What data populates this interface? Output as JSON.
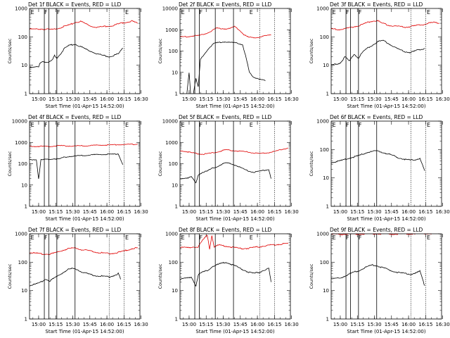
{
  "chart_data": [
    {
      "type": "line",
      "title": "Det 1f BLACK = Events, RED = LLD",
      "xlabel": "Start Time (01-Apr-15 14:52:00)",
      "ylabel": "Counts/sec",
      "yscale": "log",
      "ylim": [
        1,
        1000
      ],
      "xticks": [
        "15:00",
        "15:15",
        "15:30",
        "15:45",
        "16:00",
        "16:15",
        "16:30"
      ],
      "yticks": [
        "1",
        "10",
        "100",
        "1000"
      ],
      "markers": [
        "E",
        "F",
        "F",
        "E"
      ],
      "series": [
        {
          "name": "Events",
          "color": "#000000",
          "x": [
            0,
            8,
            9,
            12,
            16,
            20,
            22,
            24,
            27,
            31,
            35,
            40,
            45,
            52,
            60,
            65,
            70,
            75,
            78,
            82
          ],
          "y": [
            8,
            9,
            12,
            14,
            12,
            15,
            22,
            18,
            25,
            40,
            50,
            55,
            45,
            33,
            25,
            22,
            20,
            23,
            25,
            40
          ]
        },
        {
          "name": "LLD",
          "color": "#e00000",
          "x": [
            0,
            10,
            20,
            25,
            30,
            35,
            40,
            45,
            50,
            55,
            60,
            65,
            70,
            75,
            80,
            85,
            90,
            95
          ],
          "y": [
            185,
            190,
            180,
            200,
            230,
            260,
            320,
            350,
            280,
            230,
            220,
            230,
            240,
            260,
            300,
            330,
            360,
            300
          ]
        }
      ]
    },
    {
      "type": "line",
      "title": "Det 2f BLACK = Events, RED = LLD",
      "xlabel": "Start Time (01-Apr-15 14:52:00)",
      "ylabel": "Counts/sec",
      "yscale": "log",
      "ylim": [
        1,
        10000
      ],
      "xticks": [
        "15:00",
        "15:15",
        "15:30",
        "15:45",
        "16:00",
        "16:15",
        "16:30"
      ],
      "yticks": [
        "1",
        "10",
        "100",
        "1000",
        "10000"
      ],
      "markers": [
        "E",
        "F",
        "E"
      ],
      "series": [
        {
          "name": "Events",
          "color": "#000000",
          "x": [
            0,
            6,
            8,
            10,
            14,
            16,
            18,
            22,
            26,
            30,
            35,
            40,
            45,
            50,
            55,
            58,
            61,
            64,
            70,
            75
          ],
          "y": [
            0.3,
            1,
            10,
            0.3,
            5,
            2,
            40,
            80,
            150,
            230,
            260,
            270,
            250,
            240,
            200,
            50,
            10,
            6,
            5,
            4
          ]
        },
        {
          "name": "LLD",
          "color": "#e00000",
          "x": [
            0,
            8,
            12,
            16,
            20,
            24,
            28,
            32,
            36,
            40,
            44,
            48,
            52,
            56,
            60,
            65,
            70,
            75,
            80
          ],
          "y": [
            450,
            480,
            520,
            520,
            600,
            700,
            900,
            1200,
            1150,
            1100,
            1150,
            1400,
            1000,
            600,
            450,
            420,
            460,
            520,
            560
          ]
        }
      ]
    },
    {
      "type": "line",
      "title": "Det 3f BLACK = Events, RED = LLD",
      "xlabel": "Start Time (01-Apr-15 14:52:00)",
      "ylabel": "Counts/sec",
      "yscale": "log",
      "ylim": [
        1,
        1000
      ],
      "xticks": [
        "15:00",
        "15:15",
        "15:30",
        "15:45",
        "16:00",
        "16:15",
        "16:30"
      ],
      "yticks": [
        "1",
        "10",
        "100",
        "1000"
      ],
      "markers": [
        "E",
        "F",
        "F",
        "E"
      ],
      "series": [
        {
          "name": "Events",
          "color": "#000000",
          "x": [
            0,
            8,
            10,
            12,
            16,
            20,
            24,
            28,
            32,
            36,
            40,
            45,
            50,
            55,
            60,
            65,
            70,
            75,
            78,
            82
          ],
          "y": [
            10,
            12,
            15,
            20,
            14,
            25,
            18,
            30,
            40,
            50,
            65,
            75,
            60,
            45,
            35,
            30,
            28,
            33,
            35,
            40
          ]
        },
        {
          "name": "LLD",
          "color": "#e00000",
          "x": [
            0,
            8,
            14,
            20,
            25,
            30,
            35,
            40,
            45,
            50,
            55,
            60,
            65,
            70,
            75,
            80,
            85,
            90,
            95
          ],
          "y": [
            190,
            180,
            200,
            230,
            250,
            300,
            350,
            380,
            300,
            260,
            240,
            230,
            220,
            230,
            250,
            270,
            300,
            320,
            300
          ]
        }
      ]
    },
    {
      "type": "line",
      "title": "Det 4f BLACK = Events, RED = LLD",
      "xlabel": "Start Time (01-Apr-15 14:52:00)",
      "ylabel": "Counts/sec",
      "yscale": "log",
      "ylim": [
        1,
        10000
      ],
      "xticks": [
        "15:00",
        "15:15",
        "15:30",
        "15:45",
        "16:00",
        "16:15",
        "16:30"
      ],
      "yticks": [
        "1",
        "10",
        "100",
        "1000",
        "10000"
      ],
      "markers": [
        "E",
        "F",
        "F",
        "E"
      ],
      "series": [
        {
          "name": "Events",
          "color": "#000000",
          "x": [
            0,
            6,
            8,
            10,
            15,
            18,
            22,
            26,
            30,
            35,
            40,
            45,
            50,
            55,
            60,
            65,
            70,
            75,
            78,
            82
          ],
          "y": [
            150,
            160,
            20,
            150,
            160,
            160,
            170,
            165,
            200,
            220,
            230,
            240,
            250,
            260,
            270,
            270,
            280,
            280,
            290,
            90
          ]
        },
        {
          "name": "LLD",
          "color": "#e00000",
          "x": [
            0,
            8,
            16,
            20,
            24,
            30,
            35,
            40,
            45,
            50,
            55,
            60,
            65,
            70,
            75,
            80,
            85,
            90,
            95
          ],
          "y": [
            650,
            660,
            640,
            650,
            700,
            700,
            680,
            680,
            690,
            700,
            720,
            740,
            750,
            760,
            780,
            790,
            800,
            820,
            840
          ]
        }
      ]
    },
    {
      "type": "line",
      "title": "Det 5f BLACK = Events, RED = LLD",
      "xlabel": "Start Time (01-Apr-15 14:52:00)",
      "ylabel": "Counts/sec",
      "yscale": "log",
      "ylim": [
        1,
        10000
      ],
      "xticks": [
        "15:00",
        "15:15",
        "15:30",
        "15:45",
        "16:00",
        "16:15",
        "16:30"
      ],
      "yticks": [
        "1",
        "10",
        "100",
        "1000",
        "10000"
      ],
      "markers": [
        "E",
        "F",
        "E"
      ],
      "series": [
        {
          "name": "Events",
          "color": "#000000",
          "x": [
            0,
            8,
            10,
            14,
            16,
            20,
            24,
            28,
            32,
            36,
            40,
            45,
            50,
            55,
            60,
            65,
            70,
            75,
            78,
            80
          ],
          "y": [
            20,
            22,
            25,
            12,
            30,
            40,
            45,
            60,
            70,
            90,
            110,
            100,
            80,
            60,
            45,
            40,
            45,
            50,
            55,
            20
          ]
        },
        {
          "name": "LLD",
          "color": "#e00000",
          "x": [
            0,
            8,
            14,
            20,
            25,
            30,
            35,
            40,
            45,
            50,
            55,
            60,
            65,
            70,
            75,
            80,
            85,
            90,
            95
          ],
          "y": [
            420,
            350,
            300,
            280,
            300,
            330,
            380,
            450,
            420,
            400,
            380,
            350,
            320,
            300,
            320,
            350,
            400,
            480,
            550
          ]
        }
      ]
    },
    {
      "type": "line",
      "title": "Det 6f BLACK = Events, RED = LLD",
      "xlabel": "Start Time (01-Apr-15 14:52:00)",
      "ylabel": "Counts/sec",
      "yscale": "log",
      "ylim": [
        1,
        1000
      ],
      "xticks": [
        "15:00",
        "15:15",
        "15:30",
        "15:45",
        "16:00",
        "16:15",
        "16:30"
      ],
      "yticks": [
        "1",
        "10",
        "100",
        "1000"
      ],
      "markers": [
        "E",
        "F",
        "F",
        "E"
      ],
      "series": [
        {
          "name": "Events",
          "color": "#000000",
          "x": [
            0,
            8,
            12,
            16,
            20,
            24,
            28,
            32,
            36,
            40,
            45,
            50,
            55,
            60,
            65,
            70,
            75,
            78,
            82
          ],
          "y": [
            35,
            40,
            45,
            50,
            55,
            60,
            70,
            80,
            85,
            90,
            80,
            70,
            60,
            50,
            45,
            42,
            45,
            50,
            18
          ]
        }
      ]
    },
    {
      "type": "line",
      "title": "Det 7f BLACK = Events, RED = LLD",
      "xlabel": "Start Time (01-Apr-15 14:52:00)",
      "ylabel": "Counts/sec",
      "yscale": "log",
      "ylim": [
        1,
        1000
      ],
      "xticks": [
        "15:00",
        "15:15",
        "15:30",
        "15:45",
        "16:00",
        "16:15",
        "16:30"
      ],
      "yticks": [
        "1",
        "10",
        "100",
        "1000"
      ],
      "markers": [
        "E",
        "F",
        "F",
        "E"
      ],
      "series": [
        {
          "name": "Events",
          "color": "#000000",
          "x": [
            0,
            8,
            10,
            14,
            18,
            22,
            26,
            30,
            34,
            38,
            42,
            46,
            50,
            55,
            60,
            65,
            70,
            75,
            78,
            80
          ],
          "y": [
            15,
            18,
            20,
            25,
            22,
            28,
            35,
            45,
            55,
            60,
            55,
            45,
            40,
            35,
            33,
            32,
            30,
            35,
            40,
            25
          ]
        },
        {
          "name": "LLD",
          "color": "#e00000",
          "x": [
            0,
            8,
            14,
            20,
            25,
            30,
            35,
            40,
            45,
            50,
            55,
            60,
            65,
            70,
            75,
            80,
            85,
            90,
            95
          ],
          "y": [
            220,
            200,
            190,
            200,
            230,
            270,
            300,
            320,
            280,
            260,
            240,
            220,
            210,
            200,
            210,
            230,
            260,
            300,
            320
          ]
        }
      ]
    },
    {
      "type": "line",
      "title": "Det 8f BLACK = Events, RED = LLD",
      "xlabel": "Start Time (01-Apr-15 14:52:00)",
      "ylabel": "Counts/sec",
      "yscale": "log",
      "ylim": [
        1,
        1000
      ],
      "xticks": [
        "15:00",
        "15:15",
        "15:30",
        "15:45",
        "16:00",
        "16:15",
        "16:30"
      ],
      "yticks": [
        "1",
        "10",
        "100",
        "1000"
      ],
      "markers": [
        "E",
        "F",
        "E"
      ],
      "series": [
        {
          "name": "Events",
          "color": "#000000",
          "x": [
            0,
            8,
            10,
            14,
            16,
            20,
            24,
            28,
            32,
            36,
            40,
            45,
            50,
            55,
            60,
            65,
            70,
            75,
            78,
            80
          ],
          "y": [
            25,
            28,
            30,
            15,
            35,
            45,
            50,
            70,
            80,
            90,
            100,
            85,
            70,
            55,
            45,
            40,
            45,
            55,
            60,
            20
          ]
        },
        {
          "name": "LLD",
          "color": "#e00000",
          "x": [
            0,
            8,
            12,
            16,
            20,
            24,
            26,
            28,
            30,
            34,
            38,
            42,
            46,
            50,
            55,
            60,
            65,
            70,
            75,
            80,
            85,
            90,
            95
          ],
          "y": [
            330,
            320,
            350,
            340,
            600,
            900,
            300,
            900,
            350,
            400,
            380,
            360,
            340,
            320,
            300,
            310,
            330,
            350,
            380,
            400,
            420,
            440,
            450
          ]
        }
      ]
    },
    {
      "type": "line",
      "title": "Det 9f BLACK = Events, RED = LLD",
      "xlabel": "Start Time (01-Apr-15 14:52:00)",
      "ylabel": "Counts/sec",
      "yscale": "log",
      "ylim": [
        1,
        1000
      ],
      "xticks": [
        "15:00",
        "15:15",
        "15:30",
        "15:45",
        "16:00",
        "16:15",
        "16:30"
      ],
      "yticks": [
        "1",
        "10",
        "100",
        "1000"
      ],
      "markers": [
        "E",
        "F",
        "F",
        "E"
      ],
      "series": [
        {
          "name": "Events",
          "color": "#000000",
          "x": [
            0,
            8,
            12,
            16,
            20,
            24,
            28,
            32,
            36,
            40,
            45,
            50,
            55,
            60,
            65,
            70,
            75,
            78,
            82
          ],
          "y": [
            25,
            28,
            32,
            38,
            45,
            50,
            60,
            70,
            80,
            75,
            65,
            55,
            48,
            42,
            40,
            38,
            42,
            48,
            15
          ]
        },
        {
          "name": "LLD",
          "color": "#e00000",
          "x": [
            0,
            10,
            20,
            30,
            40,
            50,
            60,
            70,
            80,
            90,
            95
          ],
          "y": [
            950,
            960,
            980,
            1000,
            1000,
            990,
            980,
            1000,
            1020,
            1040,
            1050
          ]
        }
      ]
    }
  ]
}
